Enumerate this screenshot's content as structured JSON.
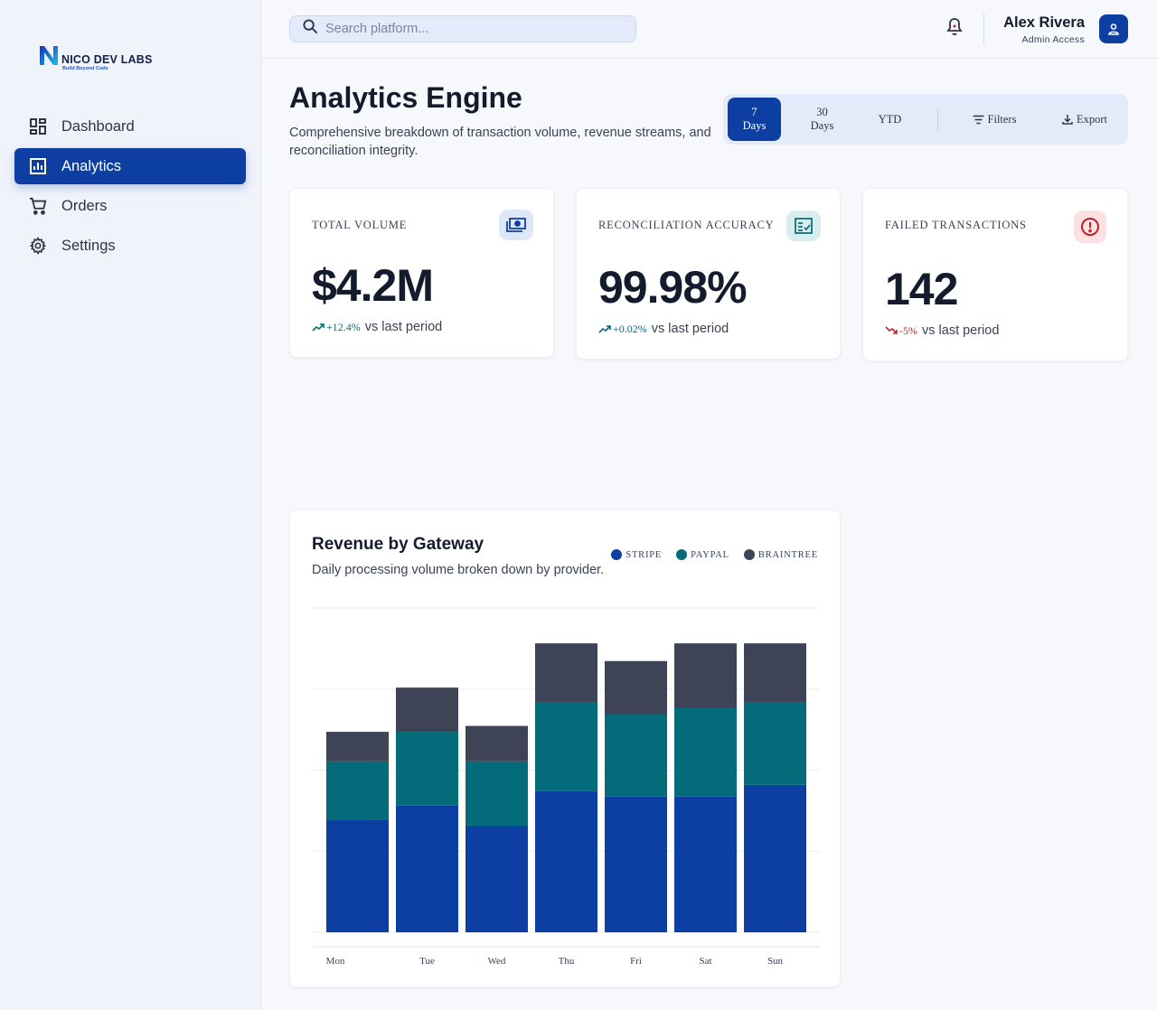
{
  "brand": {
    "name": "NICO DEV LABS",
    "tagline": "Build Beyond Code"
  },
  "sidebar": {
    "items": [
      {
        "label": "Dashboard",
        "icon": "dashboard-icon",
        "active": false
      },
      {
        "label": "Analytics",
        "icon": "analytics-icon",
        "active": true
      },
      {
        "label": "Orders",
        "icon": "cart-icon",
        "active": false
      },
      {
        "label": "Settings",
        "icon": "gear-icon",
        "active": false
      }
    ]
  },
  "header": {
    "search_placeholder": "Search platform...",
    "user_name": "Alex Rivera",
    "user_role": "Admin Access"
  },
  "page": {
    "title": "Analytics Engine",
    "subtitle": "Comprehensive breakdown of transaction volume, revenue streams, and reconciliation integrity."
  },
  "range": {
    "options": [
      {
        "line1": "7",
        "line2": "Days",
        "active": true
      },
      {
        "line1": "30",
        "line2": "Days",
        "active": false
      },
      {
        "line1": "YTD",
        "line2": "",
        "active": false
      }
    ],
    "filters_label": "Filters",
    "export_label": "Export"
  },
  "stats": [
    {
      "label": "TOTAL VOLUME",
      "value": "$4.2M",
      "delta": "+12.4%",
      "delta_suffix": "vs last period",
      "trend": "up",
      "icon": "cash-icon"
    },
    {
      "label": "RECONCILIATION ACCURACY",
      "value": "99.98%",
      "delta": "+0.02%",
      "delta_suffix": "vs last period",
      "trend": "up",
      "icon": "fact-check-icon"
    },
    {
      "label": "FAILED TRANSACTIONS",
      "value": "142",
      "delta": "-5%",
      "delta_suffix": "vs last period",
      "trend": "down",
      "icon": "error-icon"
    }
  ],
  "colors": {
    "primary": "#0d3fa3",
    "teal": "#036b79",
    "slate": "#3f4356",
    "up": "#036b79",
    "down": "#c0202a"
  },
  "chart_data": {
    "type": "bar",
    "stacked": true,
    "title": "Revenue by Gateway",
    "subtitle": "Daily processing volume broken down by provider.",
    "categories": [
      "Mon",
      "Tue",
      "Wed",
      "Thu",
      "Fri",
      "Sat",
      "Sun"
    ],
    "series": [
      {
        "name": "STRIPE",
        "color": "#0d3fa3",
        "values": [
          38,
          43,
          36,
          48,
          46,
          46,
          50
        ]
      },
      {
        "name": "PAYPAL",
        "color": "#036b79",
        "values": [
          20,
          25,
          22,
          30,
          28,
          30,
          28
        ]
      },
      {
        "name": "BRAINTREE",
        "color": "#3f4356",
        "values": [
          10,
          15,
          12,
          20,
          18,
          22,
          20
        ]
      }
    ],
    "ylim": [
      0,
      110
    ],
    "grid": true
  }
}
